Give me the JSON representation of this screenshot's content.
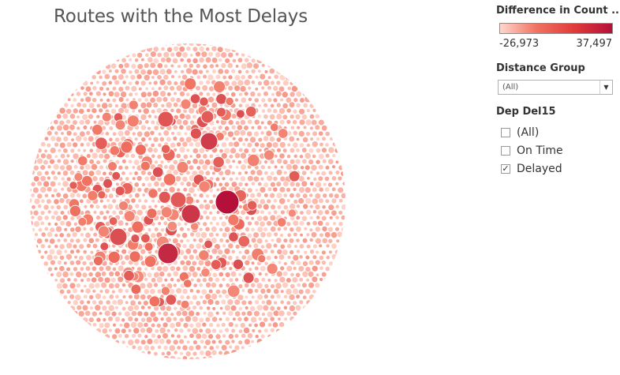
{
  "chart_data": {
    "type": "bubble",
    "title": "Routes with the Most Delays",
    "color_legend": {
      "title": "Difference in Count ..",
      "min_label": "-26,973",
      "max_label": "37,497",
      "min": -26973,
      "max": 37497,
      "color_low": "#ffd6cc",
      "color_high": "#b5103a"
    },
    "notable_bubbles": [
      {
        "value": 37497
      },
      {
        "value": 31000
      },
      {
        "value": 27500
      },
      {
        "value": 26000
      },
      {
        "value": 21000
      },
      {
        "value": 19000
      },
      {
        "value": 18000
      },
      {
        "value": 17500
      }
    ]
  },
  "filters": {
    "distance_group": {
      "label": "Distance Group",
      "selected": "(All)"
    },
    "dep_del15": {
      "label": "Dep Del15",
      "options": [
        {
          "label": "(All)",
          "checked": false
        },
        {
          "label": "On Time",
          "checked": false
        },
        {
          "label": "Delayed",
          "checked": true
        }
      ]
    }
  },
  "icons": {
    "dropdown": "chevron-down-icon",
    "check": "checkmark-icon"
  }
}
